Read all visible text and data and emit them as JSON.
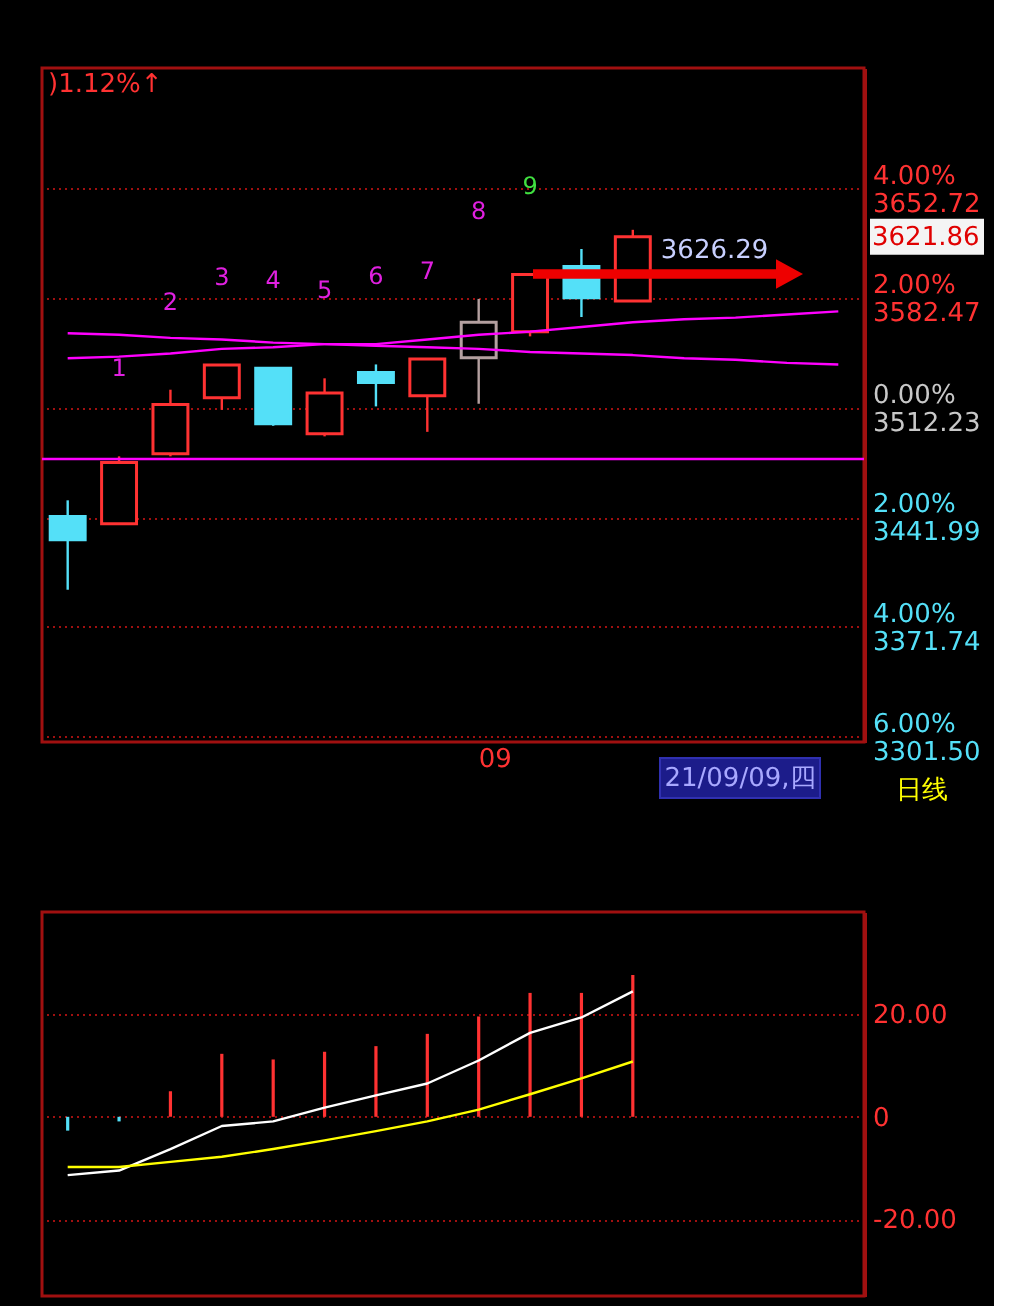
{
  "chart_data": [
    {
      "type": "candlestick",
      "categories": [
        null,
        null,
        null,
        null,
        null,
        null,
        null,
        null,
        "09",
        null,
        null,
        null,
        null,
        null,
        null,
        null
      ],
      "ohlc": [
        [
          3442.6,
          3452.9,
          3395.6,
          3427.6
        ],
        [
          3437.9,
          3481.1,
          3437.9,
          3477.2
        ],
        [
          3482.7,
          3523.8,
          3481.1,
          3514.4
        ],
        [
          3518.6,
          3539.7,
          3510.9,
          3539.7
        ],
        [
          3537.5,
          3537.5,
          3500.7,
          3502
        ],
        [
          3495.6,
          3531.1,
          3493.9,
          3521.7
        ],
        [
          3534.9,
          3540,
          3513.1,
          3528.5
        ],
        [
          3519.9,
          3543.5,
          3496.8,
          3543.5
        ],
        [
          3544.3,
          3582,
          3514.8,
          3567
        ],
        [
          3561,
          3597.7,
          3558,
          3597.7
        ],
        [
          3602.8,
          3614,
          3570.4,
          3582.7
        ],
        [
          3580.7,
          3626.29,
          3580.7,
          3621.86
        ],
        null,
        null,
        null,
        null
      ],
      "colors": [
        "#54e0f8",
        "#ff3232",
        "#ff3232",
        "#ff3232",
        "#54e0f8",
        "#ff3232",
        "#54e0f8",
        "#ff3232",
        "#b4a0a0",
        "#ff3232",
        "#54e0f8",
        "#ff3232",
        null,
        null,
        null,
        null
      ],
      "series": [
        {
          "type": "line",
          "color": "#ff00ff",
          "values": [
            3560,
            3559,
            3557,
            3556,
            3554,
            3553,
            3552,
            3551,
            3550,
            3548,
            3547,
            3546,
            3544,
            3543,
            3541,
            3540
          ]
        },
        {
          "type": "line",
          "color": "#ff00ff",
          "values": [
            3544,
            3545,
            3547,
            3550,
            3551,
            3553,
            3553,
            3556,
            3559,
            3561,
            3564,
            3567,
            3569,
            3570,
            3572,
            3574
          ]
        }
      ],
      "ylim": [
        3298,
        3730
      ],
      "yticks": [
        {
          "value": 3652.72,
          "label": "3652.72"
        },
        {
          "value": 3582.47,
          "label": "3582.47"
        },
        {
          "value": 3512.23,
          "label": "3512.23"
        },
        {
          "value": 3441.99,
          "label": "3441.99"
        },
        {
          "value": 3371.74,
          "label": "3371.74"
        },
        {
          "value": 3301.5,
          "label": "3301.50"
        }
      ],
      "y2lim": [
        -6.1,
        6.2
      ],
      "y2ticks": [
        {
          "value": 4,
          "label": "4.00%"
        },
        {
          "value": 2,
          "label": "2.00%"
        },
        {
          "value": 0,
          "label": "0.00%"
        },
        {
          "value": -2,
          "label": "2.00%"
        },
        {
          "value": -4,
          "label": "4.00%"
        },
        {
          "value": -6,
          "label": "6.00%"
        }
      ],
      "grid": "y",
      "ref_lines": [
        {
          "axis": "y",
          "value": 3479.4,
          "color": "#ff00ff"
        }
      ],
      "annotations": [
        ")1.12%↑",
        "1",
        "2",
        "3",
        "4",
        "5",
        "6",
        "7",
        "8",
        "9",
        "3626.29",
        "3621.86",
        "21/09/09,四",
        "日线"
      ]
    },
    {
      "type": "bar",
      "categories": [
        null,
        null,
        null,
        null,
        null,
        null,
        null,
        null,
        null,
        null,
        null,
        null,
        null,
        null,
        null,
        null
      ],
      "values": [
        -2.7,
        -0.9,
        5.0,
        12.3,
        11.2,
        12.7,
        13.8,
        16.2,
        19.6,
        24.2,
        24.2,
        27.7,
        null,
        null,
        null,
        null
      ],
      "colors": [
        "#54e0f8",
        "#54e0f8",
        "#ff3232",
        "#ff3232",
        "#ff3232",
        "#ff3232",
        "#ff3232",
        "#ff3232",
        "#ff3232",
        "#ff3232",
        "#ff3232",
        "#ff3232",
        null,
        null,
        null,
        null
      ],
      "series": [
        {
          "type": "line",
          "color": "#ffffff",
          "values": [
            -11.4,
            -10.5,
            -6.3,
            -1.8,
            -0.9,
            1.8,
            4.2,
            6.5,
            11.0,
            16.4,
            19.4,
            24.5,
            null,
            null,
            null,
            null
          ]
        },
        {
          "type": "line",
          "color": "#ffff00",
          "values": [
            -9.8,
            -9.8,
            -8.8,
            -7.8,
            -6.3,
            -4.6,
            -2.8,
            -0.9,
            1.4,
            4.4,
            7.5,
            10.8,
            null,
            null,
            null,
            null
          ]
        }
      ],
      "ylim": [
        -35,
        40
      ],
      "yticks": [
        {
          "value": 20,
          "label": "20.00"
        },
        0,
        {
          "value": -20,
          "label": "-20.00"
        }
      ],
      "grid": "y",
      "tick_labels": "y"
    }
  ]
}
